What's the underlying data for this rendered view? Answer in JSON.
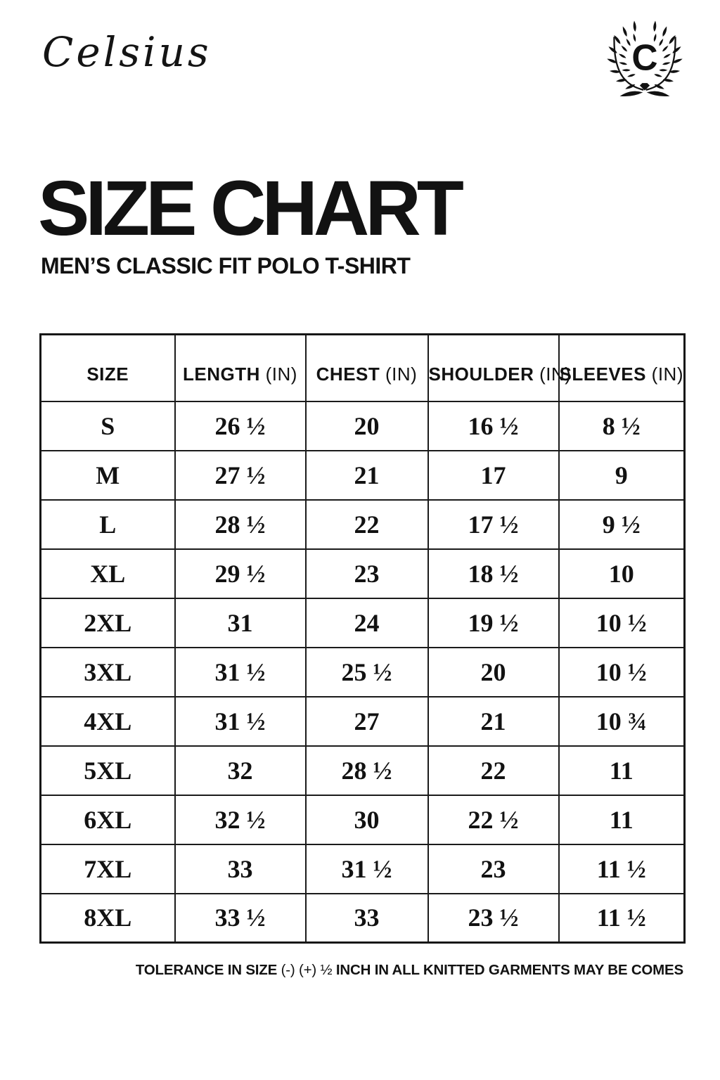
{
  "brand": {
    "script_name": "Celsius",
    "logo_letter": "C"
  },
  "header": {
    "title": "SIZE CHART",
    "subtitle": "MEN’S CLASSIC FIT POLO T-SHIRT"
  },
  "chart_data": {
    "type": "table",
    "title": "SIZE CHART",
    "subtitle": "MEN’S CLASSIC FIT POLO T-SHIRT",
    "unit": "inches",
    "columns": [
      {
        "label": "SIZE",
        "unit": ""
      },
      {
        "label": "LENGTH",
        "unit": "(IN)"
      },
      {
        "label": "CHEST",
        "unit": "(IN)"
      },
      {
        "label": "SHOULDER",
        "unit": "(IN)"
      },
      {
        "label": "SLEEVES",
        "unit": "(IN)"
      }
    ],
    "rows": [
      [
        "S",
        "26 ½",
        "20",
        "16 ½",
        "8 ½"
      ],
      [
        "M",
        "27 ½",
        "21",
        "17",
        "9"
      ],
      [
        "L",
        "28 ½",
        "22",
        "17 ½",
        "9 ½"
      ],
      [
        "XL",
        "29 ½",
        "23",
        "18 ½",
        "10"
      ],
      [
        "2XL",
        "31",
        "24",
        "19 ½",
        "10 ½"
      ],
      [
        "3XL",
        "31 ½",
        "25 ½",
        "20",
        "10 ½"
      ],
      [
        "4XL",
        "31 ½",
        "27",
        "21",
        "10 ¾"
      ],
      [
        "5XL",
        "32",
        "28 ½",
        "22",
        "11"
      ],
      [
        "6XL",
        "32 ½",
        "30",
        "22 ½",
        "11"
      ],
      [
        "7XL",
        "33",
        "31 ½",
        "23",
        "11 ½"
      ],
      [
        "8XL",
        "33 ½",
        "33",
        "23 ½",
        "11 ½"
      ]
    ]
  },
  "footnote": {
    "bold_start": "TOLERANCE IN SIZE",
    "light_mid": "(-) (+) ½",
    "bold_end": "INCH IN ALL KNITTED GARMENTS MAY BE COMES"
  },
  "colors": {
    "ink": "#121212",
    "background": "#ffffff",
    "table_border": "#1b1b1b"
  }
}
